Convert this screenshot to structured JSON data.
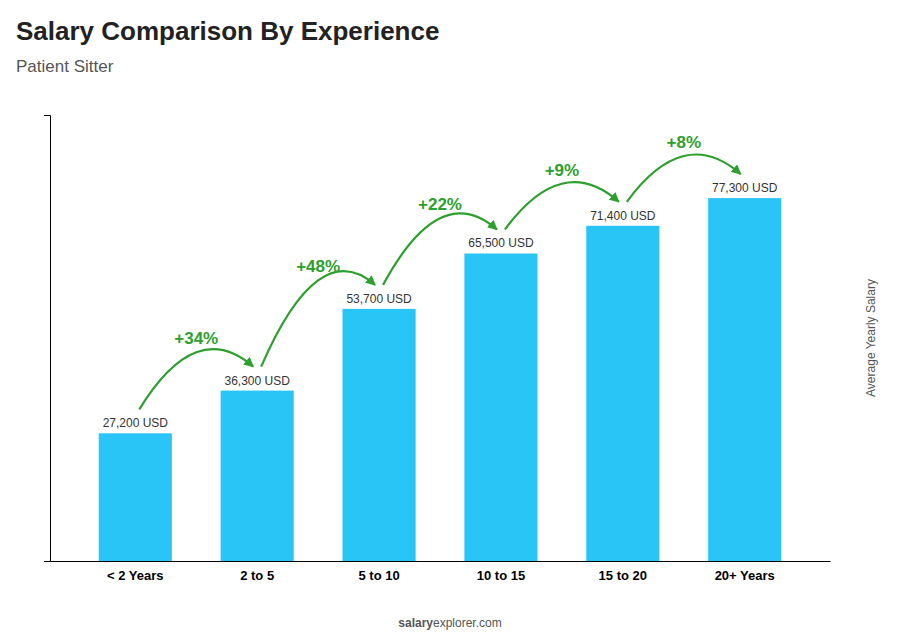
{
  "chart_data": {
    "type": "bar",
    "title": "Salary Comparison By Experience",
    "subtitle": "Patient Sitter",
    "ylabel": "Average Yearly Salary",
    "categories": [
      "< 2 Years",
      "2 to 5",
      "5 to 10",
      "10 to 15",
      "15 to 20",
      "20+ Years"
    ],
    "values": [
      27200,
      36300,
      53700,
      65500,
      71400,
      77300
    ],
    "value_labels": [
      "27,200 USD",
      "36,300 USD",
      "53,700 USD",
      "65,500 USD",
      "71,400 USD",
      "77,300 USD"
    ],
    "data_labels": true,
    "annotations": [
      "+34%",
      "+48%",
      "+22%",
      "+9%",
      "+8%"
    ],
    "footer": [
      "salary",
      "explorer.com"
    ],
    "color": "#29c5f6",
    "ylim": [
      0,
      95000
    ],
    "grid": false,
    "tick_labels": "x"
  }
}
